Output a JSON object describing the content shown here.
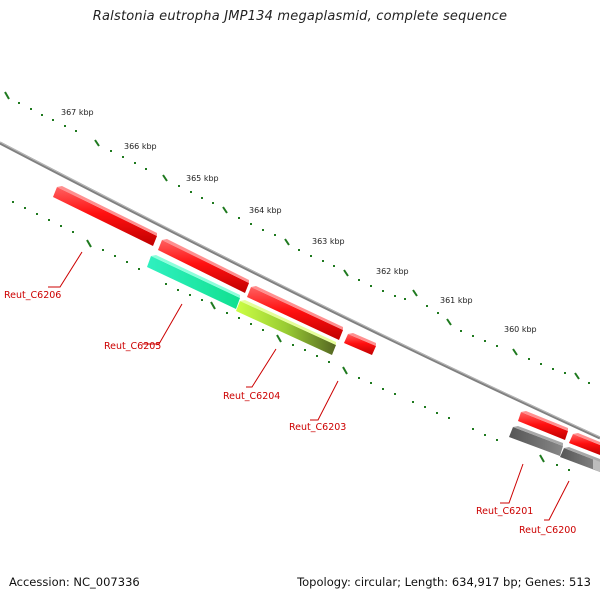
{
  "title": "Ralstonia eutropha JMP134 megaplasmid, complete sequence",
  "footer": {
    "accession": "Accession: NC_007336",
    "summary": "Topology: circular; Length: 634,917 bp; Genes: 513"
  },
  "scale_labels": [
    "367 kbp",
    "366 kbp",
    "365 kbp",
    "364 kbp",
    "363 kbp",
    "362 kbp",
    "361 kbp",
    "360 kbp"
  ],
  "gene_labels": [
    "Reut_C6206",
    "Reut_C6205",
    "Reut_C6204",
    "Reut_C6203",
    "Reut_C6201",
    "Reut_C6200"
  ],
  "colors": {
    "backbone": "#808080",
    "tick": "#1f7a1f",
    "gene_red": "#ff1010",
    "gene_cyan": "#20f0a8",
    "gene_olive_start": "#aaee44",
    "gene_olive_end": "#667722",
    "gene_gray": "#666666",
    "label": "#cc0000"
  }
}
